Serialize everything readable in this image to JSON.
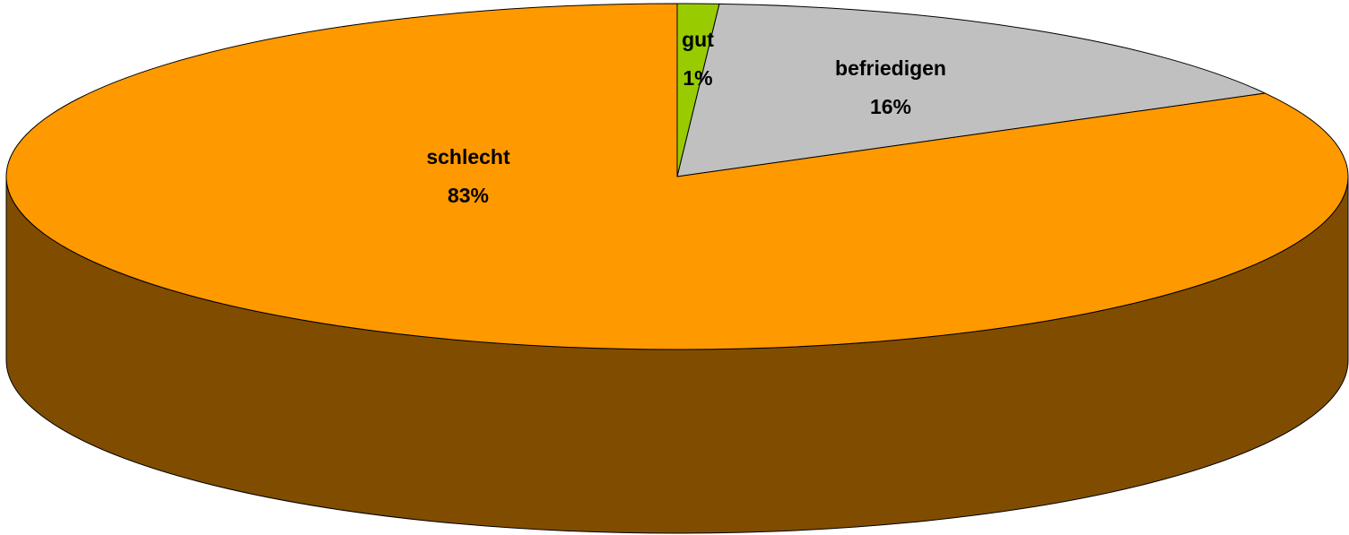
{
  "chart_data": {
    "type": "pie",
    "three_d": true,
    "categories": [
      "gut",
      "befriedigen",
      "schlecht"
    ],
    "values": [
      1,
      16,
      83
    ],
    "value_labels": [
      "1%",
      "16%",
      "83%"
    ],
    "colors": [
      "#99cc00",
      "#c0c0c0",
      "#ff9900"
    ]
  }
}
